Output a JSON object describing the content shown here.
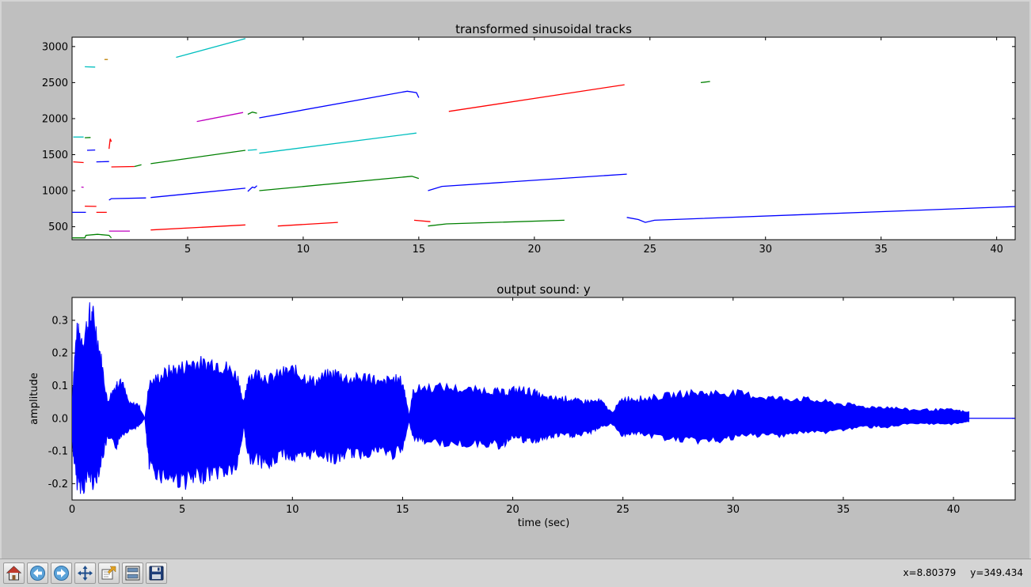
{
  "toolbar": {
    "buttons": [
      {
        "name": "home-button",
        "icon": "home-icon"
      },
      {
        "name": "back-button",
        "icon": "arrow-left-icon"
      },
      {
        "name": "forward-button",
        "icon": "arrow-right-icon"
      },
      {
        "name": "pan-button",
        "icon": "move-icon"
      },
      {
        "name": "zoom-button",
        "icon": "zoom-rect-icon"
      },
      {
        "name": "subplots-button",
        "icon": "subplots-icon"
      },
      {
        "name": "save-button",
        "icon": "save-icon"
      }
    ],
    "readout_x": "x=8.80379",
    "readout_y": "y=349.434"
  },
  "chart_data": [
    {
      "type": "line",
      "title": "transformed sinusoidal tracks",
      "xlabel": "",
      "ylabel": "",
      "xlim": [
        0,
        40.8
      ],
      "ylim": [
        320,
        3130
      ],
      "xticks": [
        5,
        10,
        15,
        20,
        25,
        30,
        35,
        40
      ],
      "yticks": [
        500,
        1000,
        1500,
        2000,
        2500,
        3000
      ],
      "series": [
        {
          "color": "#0000ff",
          "x": [
            0.0,
            0.6
          ],
          "y": [
            700,
            700
          ]
        },
        {
          "color": "#008000",
          "x": [
            0.0,
            0.55,
            0.6,
            1.1,
            1.6,
            1.7
          ],
          "y": [
            345,
            345,
            380,
            395,
            380,
            345
          ]
        },
        {
          "color": "#ff0000",
          "x": [
            0.05,
            0.5
          ],
          "y": [
            1400,
            1390
          ]
        },
        {
          "color": "#00bfbf",
          "x": [
            0.05,
            0.5
          ],
          "y": [
            1745,
            1745
          ]
        },
        {
          "color": "#bf00bf",
          "x": [
            0.4,
            0.5
          ],
          "y": [
            1050,
            1048
          ]
        },
        {
          "color": "#00bfbf",
          "x": [
            0.55,
            1.0
          ],
          "y": [
            2720,
            2715
          ]
        },
        {
          "color": "#bf7f00",
          "x": [
            1.4,
            1.55
          ],
          "y": [
            2820,
            2820
          ]
        },
        {
          "color": "#ff0000",
          "x": [
            0.55,
            1.05
          ],
          "y": [
            785,
            782
          ]
        },
        {
          "color": "#0000ff",
          "x": [
            0.65,
            1.0
          ],
          "y": [
            1560,
            1565
          ]
        },
        {
          "color": "#008000",
          "x": [
            0.55,
            0.8
          ],
          "y": [
            1735,
            1738
          ]
        },
        {
          "color": "#ff0000",
          "x": [
            1.05,
            1.5
          ],
          "y": [
            700,
            700
          ]
        },
        {
          "color": "#0000ff",
          "x": [
            1.05,
            1.6
          ],
          "y": [
            1400,
            1405
          ]
        },
        {
          "color": "#bf00bf",
          "x": [
            1.6,
            2.5
          ],
          "y": [
            440,
            440
          ]
        },
        {
          "color": "#ff0000",
          "x": [
            1.6,
            1.65,
            1.7
          ],
          "y": [
            1580,
            1720,
            1680
          ]
        },
        {
          "color": "#0000ff",
          "x": [
            1.6,
            1.7,
            3.2
          ],
          "y": [
            870,
            890,
            900
          ]
        },
        {
          "color": "#ff0000",
          "x": [
            1.7,
            2.7
          ],
          "y": [
            1330,
            1335
          ]
        },
        {
          "color": "#008000",
          "x": [
            2.7,
            3.0
          ],
          "y": [
            1335,
            1360
          ]
        },
        {
          "color": "#ff0000",
          "x": [
            3.4,
            7.5
          ],
          "y": [
            455,
            525
          ]
        },
        {
          "color": "#0000ff",
          "x": [
            3.4,
            7.5
          ],
          "y": [
            905,
            1035
          ]
        },
        {
          "color": "#008000",
          "x": [
            3.4,
            7.5
          ],
          "y": [
            1375,
            1560
          ]
        },
        {
          "color": "#00bfbf",
          "x": [
            4.5,
            7.5
          ],
          "y": [
            2850,
            3110
          ]
        },
        {
          "color": "#bf00bf",
          "x": [
            5.4,
            7.4
          ],
          "y": [
            1960,
            2085
          ]
        },
        {
          "color": "#008000",
          "x": [
            7.6,
            7.8,
            8.0
          ],
          "y": [
            2060,
            2090,
            2075
          ]
        },
        {
          "color": "#0000ff",
          "x": [
            7.6,
            7.8,
            7.9,
            8.0
          ],
          "y": [
            990,
            1050,
            1040,
            1070
          ]
        },
        {
          "color": "#00bfbf",
          "x": [
            7.6,
            8.0
          ],
          "y": [
            1560,
            1570
          ]
        },
        {
          "color": "#0000ff",
          "x": [
            8.1,
            14.5,
            14.9,
            15.0
          ],
          "y": [
            2010,
            2380,
            2360,
            2290
          ]
        },
        {
          "color": "#008000",
          "x": [
            8.1,
            14.7,
            15.0
          ],
          "y": [
            1000,
            1200,
            1170
          ]
        },
        {
          "color": "#00bfbf",
          "x": [
            8.1,
            14.9
          ],
          "y": [
            1520,
            1800
          ]
        },
        {
          "color": "#ff0000",
          "x": [
            8.9,
            11.5
          ],
          "y": [
            510,
            560
          ]
        },
        {
          "color": "#ff0000",
          "x": [
            14.8,
            15.5
          ],
          "y": [
            590,
            570
          ]
        },
        {
          "color": "#0000ff",
          "x": [
            15.4,
            16.0,
            24.0
          ],
          "y": [
            1000,
            1060,
            1230
          ]
        },
        {
          "color": "#008000",
          "x": [
            15.4,
            16.2,
            21.3
          ],
          "y": [
            510,
            540,
            590
          ]
        },
        {
          "color": "#ff0000",
          "x": [
            16.3,
            23.9
          ],
          "y": [
            2100,
            2470
          ]
        },
        {
          "color": "#008000",
          "x": [
            27.2,
            27.6
          ],
          "y": [
            2500,
            2515
          ]
        },
        {
          "color": "#0000ff",
          "x": [
            24.0,
            24.5,
            24.8,
            25.2,
            40.8
          ],
          "y": [
            630,
            600,
            560,
            590,
            780
          ]
        }
      ]
    },
    {
      "type": "line",
      "title": "output sound: y",
      "xlabel": "time (sec)",
      "ylabel": "amplitude",
      "xlim": [
        0,
        42.8
      ],
      "ylim": [
        -0.25,
        0.37
      ],
      "xticks": [
        0,
        5,
        10,
        15,
        20,
        25,
        30,
        35,
        40
      ],
      "yticks": [
        -0.2,
        -0.1,
        0.0,
        0.1,
        0.2,
        0.3
      ],
      "series": [
        {
          "color": "#0000ff",
          "x": [
            0.0,
            0.2,
            0.5,
            0.8,
            1.0,
            1.3,
            1.6,
            2.0,
            2.2,
            2.6,
            3.0,
            3.3,
            3.5,
            4.0,
            4.5,
            5.0,
            5.5,
            6.0,
            6.5,
            7.0,
            7.5,
            7.8,
            8.0,
            8.5,
            9.0,
            9.5,
            10.0,
            10.5,
            11.0,
            11.5,
            12.0,
            12.5,
            13.0,
            13.5,
            14.0,
            14.5,
            15.0,
            15.3,
            15.5,
            16.0,
            17.0,
            18.0,
            19.0,
            19.5,
            20.0,
            20.5,
            21.0,
            21.5,
            22.0,
            22.5,
            23.0,
            23.5,
            24.0,
            24.5,
            25.0,
            25.5,
            26.0,
            27.0,
            28.0,
            29.0,
            30.0,
            31.0,
            32.0,
            33.0,
            34.0,
            35.0,
            36.0,
            37.0,
            38.0,
            39.0,
            40.0,
            40.7
          ],
          "ymax": [
            0.07,
            0.3,
            0.28,
            0.36,
            0.35,
            0.22,
            0.06,
            0.12,
            0.14,
            0.05,
            0.05,
            0.0,
            0.12,
            0.15,
            0.17,
            0.18,
            0.2,
            0.19,
            0.2,
            0.18,
            0.15,
            0.05,
            0.15,
            0.16,
            0.14,
            0.16,
            0.17,
            0.15,
            0.13,
            0.15,
            0.16,
            0.14,
            0.14,
            0.15,
            0.12,
            0.14,
            0.13,
            0.01,
            0.1,
            0.11,
            0.11,
            0.1,
            0.1,
            0.09,
            0.1,
            0.1,
            0.09,
            0.07,
            0.07,
            0.07,
            0.06,
            0.06,
            0.06,
            0.02,
            0.07,
            0.07,
            0.07,
            0.08,
            0.09,
            0.09,
            0.09,
            0.08,
            0.07,
            0.07,
            0.06,
            0.05,
            0.04,
            0.04,
            0.03,
            0.03,
            0.03,
            0.02
          ],
          "ymin": [
            -0.08,
            -0.22,
            -0.24,
            -0.2,
            -0.23,
            -0.16,
            -0.07,
            -0.1,
            -0.06,
            -0.04,
            -0.03,
            0.0,
            -0.17,
            -0.2,
            -0.21,
            -0.22,
            -0.22,
            -0.2,
            -0.19,
            -0.19,
            -0.17,
            -0.03,
            -0.14,
            -0.15,
            -0.17,
            -0.12,
            -0.14,
            -0.14,
            -0.12,
            -0.13,
            -0.15,
            -0.12,
            -0.13,
            -0.12,
            -0.11,
            -0.13,
            -0.11,
            -0.01,
            -0.07,
            -0.08,
            -0.09,
            -0.09,
            -0.09,
            -0.1,
            -0.06,
            -0.08,
            -0.08,
            -0.07,
            -0.06,
            -0.06,
            -0.06,
            -0.05,
            -0.03,
            -0.02,
            -0.06,
            -0.05,
            -0.06,
            -0.07,
            -0.08,
            -0.08,
            -0.07,
            -0.06,
            -0.06,
            -0.05,
            -0.05,
            -0.04,
            -0.03,
            -0.03,
            -0.02,
            -0.02,
            -0.02,
            -0.01
          ]
        }
      ]
    }
  ]
}
